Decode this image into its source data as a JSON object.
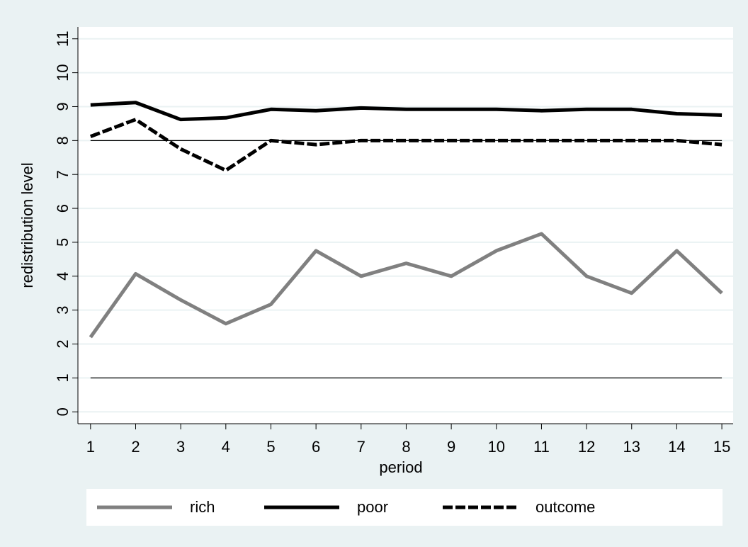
{
  "chart_data": {
    "type": "line",
    "xlabel": "period",
    "ylabel": "redistribution level",
    "x": [
      1,
      2,
      3,
      4,
      5,
      6,
      7,
      8,
      9,
      10,
      11,
      12,
      13,
      14,
      15
    ],
    "series": [
      {
        "name": "rich",
        "color": "#808080",
        "style": "solid",
        "values": [
          2.2,
          4.07,
          3.3,
          2.6,
          3.17,
          4.75,
          4.0,
          4.38,
          4.0,
          4.75,
          5.25,
          4.0,
          3.5,
          4.75,
          3.5
        ]
      },
      {
        "name": "poor",
        "color": "#000000",
        "style": "solid",
        "values": [
          9.05,
          9.12,
          8.62,
          8.67,
          8.92,
          8.88,
          8.96,
          8.92,
          8.92,
          8.92,
          8.88,
          8.92,
          8.92,
          8.79,
          8.75
        ]
      },
      {
        "name": "outcome",
        "color": "#000000",
        "style": "dashed",
        "values": [
          8.12,
          8.62,
          7.75,
          7.12,
          8.0,
          7.88,
          8.0,
          8.0,
          8.0,
          8.0,
          8.0,
          8.0,
          8.0,
          8.0,
          7.88
        ]
      }
    ],
    "ref_lines": [
      1,
      8
    ],
    "xlim": [
      0.72,
      15.25
    ],
    "xticks": [
      1,
      2,
      3,
      4,
      5,
      6,
      7,
      8,
      9,
      10,
      11,
      12,
      13,
      14,
      15
    ],
    "ylim": [
      -0.35,
      11.35
    ],
    "yticks": [
      0,
      1,
      2,
      3,
      4,
      5,
      6,
      7,
      8,
      9,
      10,
      11
    ],
    "grid": true,
    "legend": "bottom"
  }
}
